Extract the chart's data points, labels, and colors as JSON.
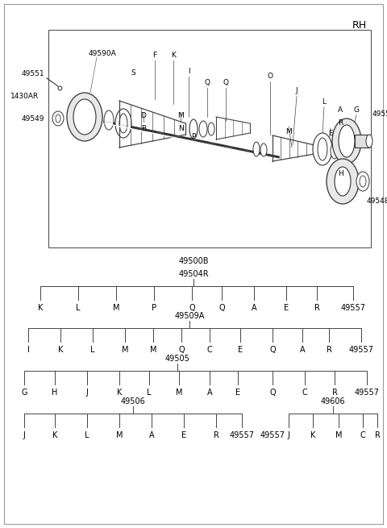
{
  "bg_color": "#ffffff",
  "text_color": "#000000",
  "line_color": "#444444",
  "rh_label": "RH",
  "label_49500B": "49500B",
  "label_49504R": "49504R",
  "label_49509A": "49509A",
  "label_49505": "49505",
  "label_49506": "49506",
  "label_49606": "49606",
  "tree1_children": [
    "K",
    "L",
    "M",
    "P",
    "Q",
    "Q",
    "A",
    "E",
    "R",
    "49557"
  ],
  "tree2_children": [
    "I",
    "K",
    "L",
    "M",
    "M",
    "Q",
    "C",
    "E",
    "Q",
    "A",
    "R",
    "49557"
  ],
  "tree3_children": [
    "G",
    "H",
    "J",
    "K",
    "L",
    "M",
    "A",
    "E",
    "Q",
    "C",
    "R",
    "49557"
  ],
  "tree4_children": [
    "J",
    "K",
    "L",
    "M",
    "A",
    "E",
    "R",
    "49557"
  ],
  "tree5_children": [
    "J",
    "K",
    "M",
    "C",
    "R"
  ],
  "font_size_tree": 7,
  "font_size_label": 6.5
}
